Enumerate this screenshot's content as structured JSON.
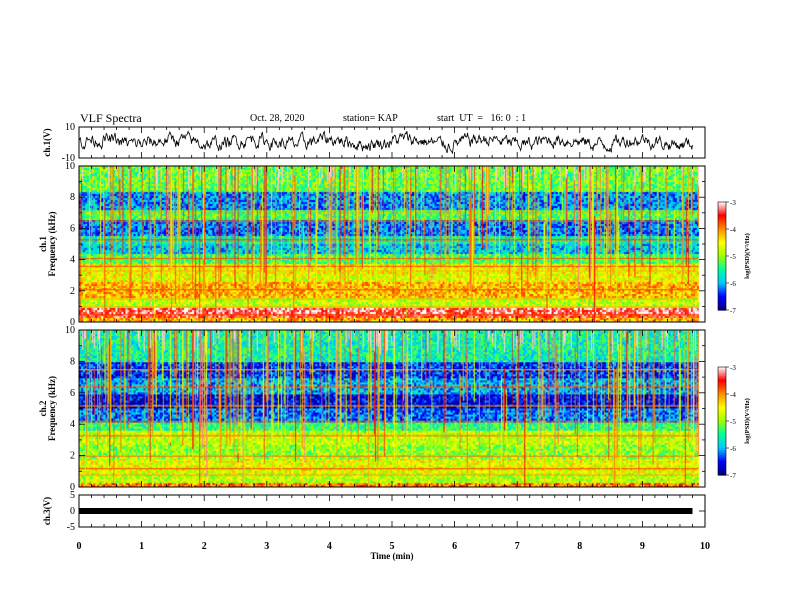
{
  "header": {
    "title": "VLF Spectra",
    "date": "Oct. 28, 2020",
    "station": "station= KAP",
    "start_ut": "start  UT  =   16: 0  : 1"
  },
  "chart_data": [
    {
      "type": "line",
      "name": "ch1-waveform",
      "ylabel": "ch.1(V)",
      "ylim": [
        -10,
        10
      ],
      "ytick_labels": [
        "10",
        "-10"
      ],
      "xlim": [
        0,
        10
      ],
      "x_end": 9.8,
      "mean": 0.5,
      "amplitude": 4
    },
    {
      "type": "heatmap",
      "name": "ch1-spectrogram",
      "ylabel": "ch.1\nFrequency  (kHz)",
      "ylim": [
        0,
        10
      ],
      "ytick_labels": [
        "0",
        "2",
        "4",
        "6",
        "8",
        "10"
      ],
      "xlim": [
        0,
        10
      ],
      "x_end": 9.8,
      "bands": [
        {
          "f": [
            0.0,
            0.3
          ],
          "v": -4.2
        },
        {
          "f": [
            0.3,
            0.6
          ],
          "v": -3.5
        },
        {
          "f": [
            0.6,
            1.0
          ],
          "v": -3.3
        },
        {
          "f": [
            1.0,
            1.6
          ],
          "v": -4.8
        },
        {
          "f": [
            1.6,
            2.6
          ],
          "v": -4.2
        },
        {
          "f": [
            2.6,
            3.2
          ],
          "v": -4.6
        },
        {
          "f": [
            3.2,
            3.8
          ],
          "v": -4.5
        },
        {
          "f": [
            3.8,
            4.4
          ],
          "v": -5.3
        },
        {
          "f": [
            4.4,
            5.0
          ],
          "v": -5.9
        },
        {
          "f": [
            5.0,
            5.6
          ],
          "v": -5.6
        },
        {
          "f": [
            5.6,
            6.6
          ],
          "v": -6.2
        },
        {
          "f": [
            6.6,
            7.3
          ],
          "v": -5.3
        },
        {
          "f": [
            7.3,
            8.4
          ],
          "v": -6.1
        },
        {
          "f": [
            8.4,
            10.0
          ],
          "v": -5.2
        }
      ],
      "hum_lines_khz": [
        0.5,
        1.0,
        1.5,
        2.1,
        3.3,
        3.6,
        4.1,
        5.3,
        6.5,
        7.1
      ]
    },
    {
      "type": "heatmap",
      "name": "ch2-spectrogram",
      "ylabel": "ch.2\nFrequency  (kHz)",
      "ylim": [
        0,
        10
      ],
      "ytick_labels": [
        "0",
        "2",
        "4",
        "6",
        "8",
        "10"
      ],
      "xlim": [
        0,
        10
      ],
      "x_end": 9.8,
      "bands": [
        {
          "f": [
            0.0,
            0.3
          ],
          "v": -4.0
        },
        {
          "f": [
            0.3,
            1.0
          ],
          "v": -4.8
        },
        {
          "f": [
            1.0,
            1.8
          ],
          "v": -4.6
        },
        {
          "f": [
            1.8,
            2.8
          ],
          "v": -5.0
        },
        {
          "f": [
            2.8,
            3.6
          ],
          "v": -4.8
        },
        {
          "f": [
            3.6,
            4.2
          ],
          "v": -5.4
        },
        {
          "f": [
            4.2,
            5.0
          ],
          "v": -6.2
        },
        {
          "f": [
            5.0,
            6.0
          ],
          "v": -6.6
        },
        {
          "f": [
            6.0,
            7.0
          ],
          "v": -6.0
        },
        {
          "f": [
            7.0,
            8.0
          ],
          "v": -6.4
        },
        {
          "f": [
            8.0,
            10.0
          ],
          "v": -5.6
        }
      ],
      "hum_lines_khz": [
        0.8,
        1.2,
        2.0,
        3.3,
        4.2,
        5.2,
        6.4,
        7.5
      ]
    },
    {
      "type": "line",
      "name": "ch3-signal",
      "ylabel": "ch.3(V)",
      "ylim": [
        -5,
        5
      ],
      "ytick_labels": [
        "5",
        "0",
        "-5"
      ],
      "xlim": [
        0,
        10
      ],
      "x_end": 9.8,
      "value": 0
    }
  ],
  "x_axis": {
    "label": "Time  (min)",
    "tick_labels": [
      "0",
      "1",
      "2",
      "3",
      "4",
      "5",
      "6",
      "7",
      "8",
      "9",
      "10"
    ]
  },
  "colorbar": {
    "label": "log(PSD)(V²/Hz)",
    "range": [
      -7,
      -3
    ],
    "tick_labels": [
      "-3",
      "-4",
      "-5",
      "-6",
      "-7"
    ],
    "colors": [
      "#000080",
      "#0000ff",
      "#00c8ff",
      "#00ff9a",
      "#9aff00",
      "#ffff00",
      "#ff8c00",
      "#ff0000",
      "#ffffff"
    ]
  }
}
